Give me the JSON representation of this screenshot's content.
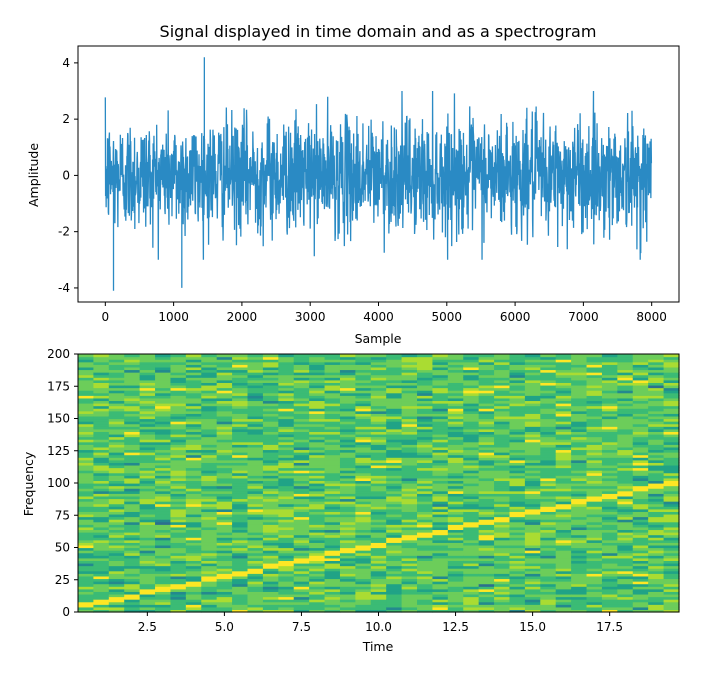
{
  "chart_data": [
    {
      "type": "line",
      "title": "Signal displayed in time domain and as a spectrogram",
      "xlabel": "Sample",
      "ylabel": "Amplitude",
      "xlim": [
        -400,
        8400
      ],
      "ylim": [
        -4.5,
        4.6
      ],
      "xticks": [
        0,
        1000,
        2000,
        3000,
        4000,
        5000,
        6000,
        7000,
        8000
      ],
      "yticks": [
        -4,
        -2,
        0,
        2,
        4
      ],
      "color": "#2a8ac4",
      "series": [
        {
          "n_samples": 8000,
          "amplitude_typical_range": [
            -2.6,
            2.8
          ],
          "peaks": [
            {
              "x": 1450,
              "y": 4.2
            },
            {
              "x": 120,
              "y": -4.1
            },
            {
              "x": 1120,
              "y": -4.0
            }
          ]
        }
      ]
    },
    {
      "type": "heatmap",
      "xlabel": "Time",
      "ylabel": "Frequency",
      "xlim": [
        0.25,
        19.75
      ],
      "ylim": [
        0,
        200
      ],
      "xticks": [
        2.5,
        5.0,
        7.5,
        10.0,
        12.5,
        15.0,
        17.5
      ],
      "yticks": [
        0,
        25,
        50,
        75,
        100,
        125,
        150,
        175,
        200
      ],
      "time_bins": 39,
      "freq_bins": 100,
      "chirp": {
        "start_frequency": 5,
        "end_frequency": 100
      },
      "colormap": [
        "#2c6f8e",
        "#23898e",
        "#20a386",
        "#3bbb75",
        "#6ccd5a",
        "#aadc32",
        "#fde725"
      ]
    }
  ]
}
